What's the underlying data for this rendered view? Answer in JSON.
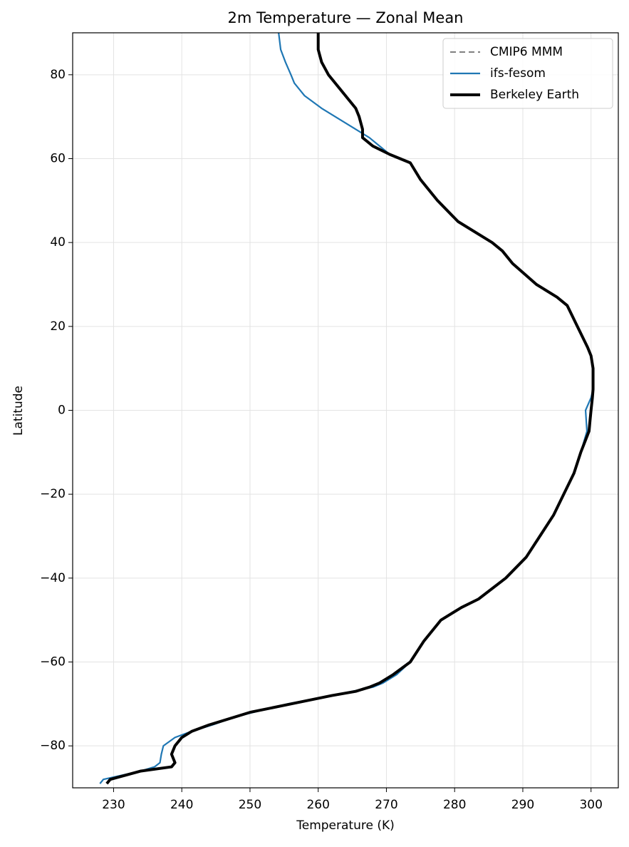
{
  "chart_data": {
    "type": "line",
    "title": "2m Temperature — Zonal Mean",
    "xlabel": "Temperature (K)",
    "ylabel": "Latitude",
    "xlim": [
      224,
      304
    ],
    "ylim": [
      -90,
      90
    ],
    "xticks": [
      230,
      240,
      250,
      260,
      270,
      280,
      290,
      300
    ],
    "yticks": [
      {
        "value": -80,
        "label": "−80"
      },
      {
        "value": -60,
        "label": "−60"
      },
      {
        "value": -40,
        "label": "−40"
      },
      {
        "value": -20,
        "label": "−20"
      },
      0,
      20,
      40,
      60,
      80
    ],
    "grid": true,
    "legend": "upper right",
    "y": [
      -89,
      -88,
      -86,
      -85,
      -84,
      -82,
      -80,
      -78,
      -76.5,
      -75,
      -73,
      -72,
      -70,
      -68,
      -67,
      -66,
      -65,
      -63,
      -60,
      -55,
      -50,
      -47,
      -45,
      -40,
      -35,
      -30,
      -25,
      -20,
      -15,
      -10,
      -5,
      0,
      3,
      5,
      10,
      13,
      15,
      20,
      25,
      27,
      30,
      35,
      38,
      40,
      45,
      50,
      55,
      59,
      61,
      63,
      65,
      67,
      70,
      72,
      75,
      78,
      80,
      83,
      86,
      90
    ],
    "series": [
      {
        "name": "CMIP6 MMM",
        "color": "#808080",
        "dash": "8,5",
        "width": 2,
        "values": [
          null,
          null,
          null,
          null,
          null,
          null,
          null,
          null,
          null,
          null,
          null,
          null,
          null,
          null,
          null,
          null,
          null,
          null,
          null,
          null,
          null,
          null,
          null,
          null,
          null,
          null,
          null,
          null,
          null,
          null,
          null,
          null,
          null,
          null,
          null,
          null,
          null,
          null,
          null,
          null,
          null,
          null,
          null,
          null,
          null,
          null,
          null,
          null,
          null,
          null,
          null,
          null,
          null,
          null,
          null,
          null,
          null,
          null,
          null,
          null
        ]
      },
      {
        "name": "ifs-fesom",
        "color": "#1f77b4",
        "width": 2.2,
        "values": [
          228,
          228.5,
          234,
          236,
          236.8,
          237,
          237.3,
          239,
          241.5,
          244.5,
          248,
          250.5,
          255.5,
          262,
          265,
          268,
          269.5,
          271.5,
          273.5,
          275.5,
          278,
          281,
          283.5,
          287.5,
          290.5,
          292.5,
          294.5,
          296,
          297.5,
          298.5,
          299.4,
          299.2,
          300,
          300.3,
          300.3,
          300,
          299.5,
          298,
          296.5,
          295,
          292,
          288.5,
          287,
          285.5,
          280.5,
          277.5,
          275,
          273.5,
          270.5,
          269,
          267.5,
          265.5,
          262.5,
          260.5,
          258,
          256.5,
          256,
          255.2,
          254.5,
          254.2
        ]
      },
      {
        "name": "Berkeley Earth",
        "color": "#000000",
        "width": 4,
        "values": [
          229,
          229.5,
          234,
          238.5,
          239,
          238.5,
          239,
          240,
          241.5,
          244,
          248,
          250,
          256,
          262,
          265.5,
          267.5,
          269,
          271,
          273.5,
          275.5,
          278,
          281,
          283.5,
          287.5,
          290.5,
          292.5,
          294.5,
          296,
          297.5,
          298.5,
          299.7,
          300,
          300.2,
          300.3,
          300.3,
          300,
          299.5,
          298,
          296.5,
          295,
          292,
          288.5,
          287,
          285.5,
          280.5,
          277.5,
          275,
          273.5,
          270.5,
          268,
          266.5,
          266.5,
          266,
          265.5,
          264,
          262.5,
          261.5,
          260.5,
          260,
          260
        ]
      }
    ]
  }
}
